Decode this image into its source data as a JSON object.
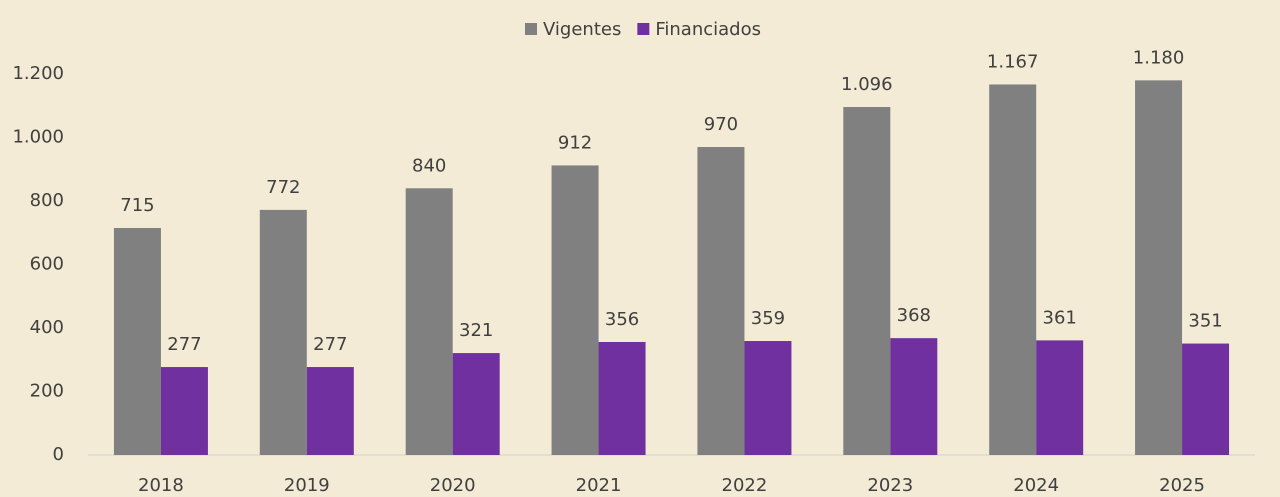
{
  "chart_data": {
    "type": "bar",
    "categories": [
      "2018",
      "2019",
      "2020",
      "2021",
      "2022",
      "2023",
      "2024",
      "2025"
    ],
    "series": [
      {
        "name": "Vigentes",
        "color": "#808080",
        "values": [
          715,
          772,
          840,
          912,
          970,
          1096,
          1167,
          1180
        ],
        "value_labels": [
          "715",
          "772",
          "840",
          "912",
          "970",
          "1.096",
          "1.167",
          "1.180"
        ]
      },
      {
        "name": "Financiados",
        "color": "#7030a0",
        "values": [
          277,
          277,
          321,
          356,
          359,
          368,
          361,
          351
        ]
      }
    ],
    "ylim": [
      0,
      1200
    ],
    "yticks": [
      0,
      200,
      400,
      600,
      800,
      {
        "value": 1000,
        "label": "1.000"
      },
      {
        "value": 1200,
        "label": "1.200"
      }
    ],
    "grid": false,
    "legend": "top"
  }
}
